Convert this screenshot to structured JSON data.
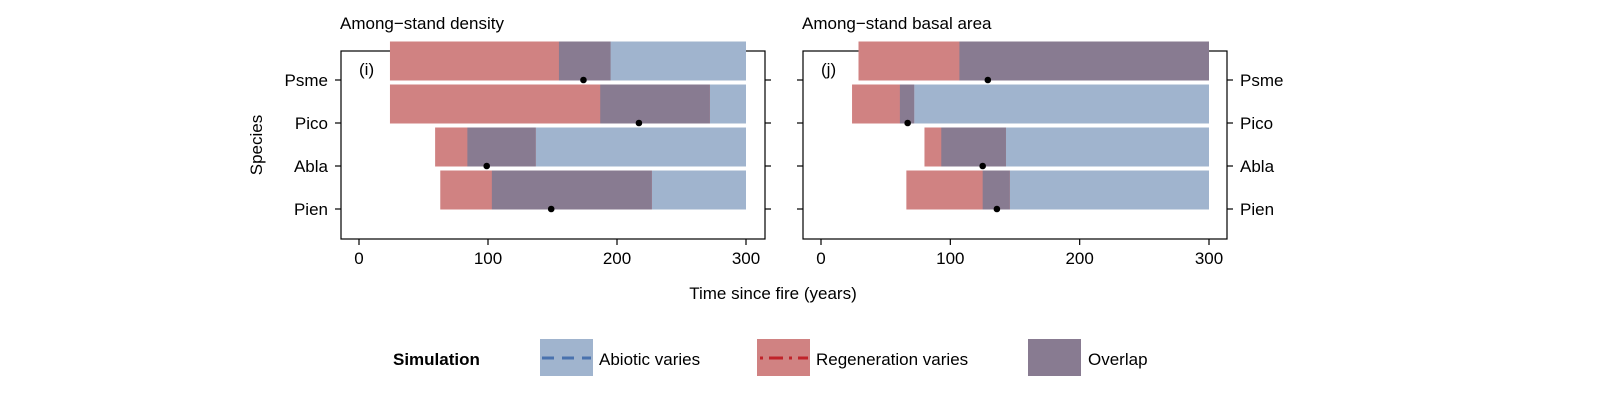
{
  "x_axis_label": "Time since fire (years)",
  "y_axis_label": "Species",
  "legend": {
    "title": "Simulation",
    "items": [
      {
        "label": "Abiotic varies",
        "color": "#a0b4ce",
        "line_color": "#4a72ae",
        "line_style": "dashed"
      },
      {
        "label": "Regeneration varies",
        "color": "#d08282",
        "line_color": "#c0232a",
        "line_style": "dash-dot"
      },
      {
        "label": "Overlap",
        "color": "#887b91"
      }
    ]
  },
  "chart_data": [
    {
      "type": "bar",
      "orientation": "horizontal",
      "title": "Among−stand density",
      "panel_label": "(i)",
      "xlim": [
        0,
        300
      ],
      "x_ticks": [
        0,
        100,
        200,
        300
      ],
      "categories": [
        "Psme",
        "Pico",
        "Abla",
        "Pien"
      ],
      "abiotic_range": [
        [
          155,
          300
        ],
        [
          187,
          300
        ],
        [
          84,
          300
        ],
        [
          103,
          300
        ]
      ],
      "regeneration_range": [
        [
          24,
          195
        ],
        [
          24,
          272
        ],
        [
          59,
          137
        ],
        [
          63,
          227
        ]
      ],
      "overlap_range": [
        [
          155,
          195
        ],
        [
          187,
          272
        ],
        [
          84,
          137
        ],
        [
          103,
          227
        ]
      ],
      "point": [
        174,
        217,
        99,
        149
      ]
    },
    {
      "type": "bar",
      "orientation": "horizontal",
      "title": "Among−stand basal area",
      "panel_label": "(j)",
      "xlim": [
        0,
        300
      ],
      "x_ticks": [
        0,
        100,
        200,
        300
      ],
      "categories": [
        "Psme",
        "Pico",
        "Abla",
        "Pien"
      ],
      "abiotic_range": [
        [
          107,
          300
        ],
        [
          61,
          300
        ],
        [
          93,
          300
        ],
        [
          125,
          300
        ]
      ],
      "regeneration_range": [
        [
          29,
          300
        ],
        [
          24,
          72
        ],
        [
          80,
          143
        ],
        [
          66,
          146
        ]
      ],
      "overlap_range": [
        [
          107,
          300
        ],
        [
          61,
          72
        ],
        [
          93,
          143
        ],
        [
          125,
          146
        ]
      ],
      "point": [
        129,
        67,
        125,
        136
      ]
    }
  ]
}
